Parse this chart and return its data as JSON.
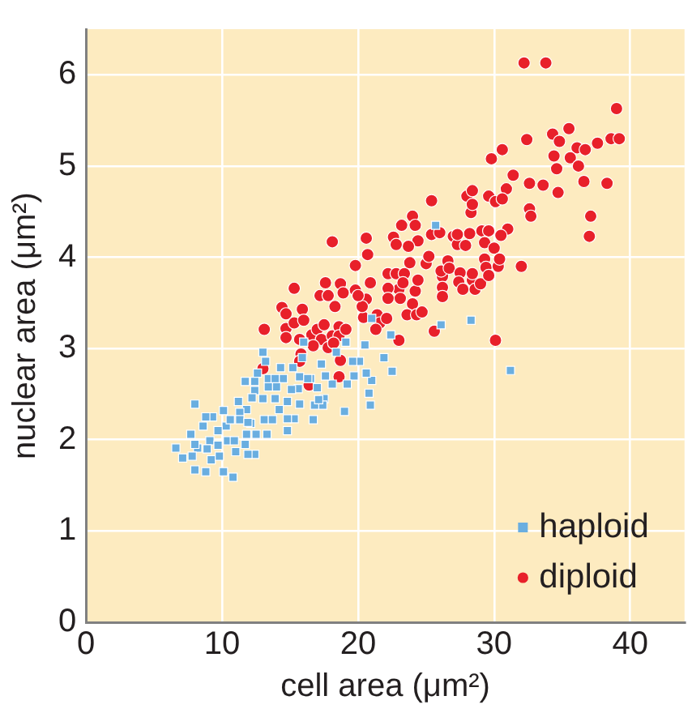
{
  "chart_data": {
    "type": "scatter",
    "xlabel": "cell area (μm²)",
    "ylabel": "nuclear area (μm²)",
    "xlim": [
      0,
      44
    ],
    "xticks": [
      0,
      10,
      20,
      30,
      40
    ],
    "ylim": [
      0,
      6.5
    ],
    "yticks": [
      0,
      1,
      2,
      3,
      4,
      5,
      6
    ],
    "grid": true,
    "legend": "bottom right",
    "series": [
      {
        "name": "haploid",
        "color": "#6aaee0",
        "marker": "square",
        "x": [
          25.7,
          26.1,
          28.3,
          31.2,
          21.0,
          22.4,
          20.5,
          21.9,
          22.5,
          21.0,
          20.8,
          20.9,
          20.6,
          20.1,
          19.6,
          19.7,
          19.2,
          19.0,
          19.1,
          18.4,
          18.1,
          17.5,
          17.4,
          16.7,
          16.8,
          17.6,
          17.0,
          16.5,
          17.3,
          16.0,
          15.7,
          15.6,
          15.7,
          15.3,
          14.8,
          14.8,
          15.1,
          14.5,
          14.3,
          14.0,
          13.9,
          13.4,
          13.4,
          13.0,
          13.2,
          12.6,
          12.4,
          11.7,
          12.4,
          13.0,
          12.2,
          11.8,
          11.2,
          11.3,
          12.1,
          13.1,
          13.3,
          12.5,
          11.8,
          11.7,
          11.0,
          12.4,
          11.9,
          10.4,
          10.3,
          10.6,
          10.1,
          9.3,
          8.8,
          8.6,
          9.7,
          9.1,
          9.7,
          8.9,
          8.2,
          7.8,
          7.1,
          6.6,
          7.7,
          8.0,
          9.2,
          8.8,
          8.0,
          10.1,
          10.8,
          8.0,
          9.8,
          10.9,
          11.3,
          11.9,
          13.7,
          14.2,
          14.8,
          15.2,
          13.9,
          15.9,
          16.3,
          17.1
        ],
        "values": [
          4.35,
          3.26,
          3.31,
          2.76,
          3.33,
          3.15,
          3.04,
          2.9,
          2.75,
          2.65,
          2.51,
          2.38,
          2.73,
          2.86,
          2.86,
          2.7,
          2.61,
          2.31,
          3.07,
          2.96,
          2.61,
          2.45,
          2.38,
          2.22,
          2.38,
          2.7,
          2.57,
          2.67,
          2.83,
          3.07,
          2.69,
          2.56,
          2.39,
          2.23,
          2.23,
          2.1,
          2.55,
          2.67,
          2.79,
          2.58,
          2.45,
          2.58,
          2.67,
          2.96,
          2.86,
          2.73,
          2.64,
          2.64,
          2.54,
          2.45,
          2.46,
          2.33,
          2.42,
          2.3,
          2.18,
          2.22,
          2.06,
          2.06,
          2.06,
          1.95,
          1.87,
          1.84,
          1.84,
          1.99,
          2.15,
          2.22,
          2.32,
          2.25,
          2.25,
          2.15,
          2.1,
          1.99,
          1.94,
          1.9,
          1.91,
          1.82,
          1.8,
          1.91,
          2.06,
          1.95,
          1.78,
          1.65,
          1.67,
          1.65,
          1.59,
          2.39,
          1.82,
          1.99,
          2.22,
          2.19,
          2.22,
          2.33,
          2.42,
          2.79,
          2.67,
          2.9,
          2.67,
          2.44
        ]
      },
      {
        "name": "diploid",
        "color": "#e8202a",
        "marker": "circle",
        "x": [
          32.2,
          33.8,
          39.0,
          38.6,
          39.2,
          32.4,
          29.8,
          30.6,
          34.3,
          34.8,
          35.5,
          34.4,
          36.1,
          36.7,
          37.6,
          35.6,
          36.2,
          34.6,
          31.4,
          32.6,
          33.6,
          36.6,
          38.3,
          34.7,
          30.9,
          29.6,
          30.1,
          30.6,
          32.6,
          32.7,
          37.1,
          37.0,
          25.4,
          28.0,
          28.4,
          28.3,
          28.4,
          31.0,
          30.5,
          29.1,
          29.6,
          29.3,
          30.0,
          24.0,
          23.2,
          24.2,
          22.6,
          24.4,
          25.4,
          26.0,
          27.0,
          27.3,
          27.9,
          28.2,
          27.3,
          22.8,
          23.7,
          20.6,
          20.7,
          18.1,
          19.8,
          20.9,
          22.2,
          22.8,
          23.4,
          23.0,
          23.1,
          22.2,
          22.2,
          23.3,
          24.2,
          24.4,
          23.8,
          25.0,
          25.2,
          26.2,
          26.1,
          26.6,
          26.7,
          26.2,
          26.2,
          27.5,
          27.4,
          27.7,
          28.4,
          28.4,
          28.6,
          29.0,
          29.3,
          29.4,
          29.6,
          30.3,
          30.4,
          32.0,
          30.1,
          25.6,
          24.0,
          23.6,
          24.3,
          24.7,
          23.0,
          21.4,
          21.6,
          21.3,
          22.1,
          20.4,
          20.6,
          20.3,
          19.8,
          20.0,
          18.7,
          17.6,
          17.2,
          17.8,
          18.9,
          18.3,
          15.3,
          14.4,
          14.7,
          14.7,
          14.7,
          15.3,
          15.9,
          16.0,
          15.7,
          15.8,
          15.7,
          13.1,
          16.6,
          17.0,
          17.5,
          17.3,
          18.1,
          18.6,
          18.6,
          19.1,
          17.8,
          16.7,
          18.2,
          18.7,
          18.6,
          16.4,
          13.0
        ],
        "values": [
          6.13,
          6.13,
          5.63,
          5.3,
          5.3,
          5.29,
          5.08,
          5.18,
          5.35,
          5.27,
          5.41,
          5.11,
          5.2,
          5.18,
          5.25,
          5.09,
          5.0,
          4.97,
          4.9,
          4.81,
          4.79,
          4.83,
          4.81,
          4.71,
          4.75,
          4.67,
          4.61,
          4.64,
          4.53,
          4.45,
          4.45,
          4.23,
          4.62,
          4.67,
          4.73,
          4.49,
          4.58,
          4.31,
          4.24,
          4.29,
          4.29,
          4.16,
          4.1,
          4.45,
          4.35,
          4.35,
          4.22,
          4.18,
          4.25,
          4.27,
          4.23,
          4.14,
          4.13,
          4.26,
          4.25,
          4.14,
          4.12,
          4.21,
          4.03,
          4.17,
          3.91,
          3.72,
          3.82,
          3.82,
          3.82,
          3.65,
          3.55,
          3.66,
          3.55,
          3.72,
          3.63,
          3.75,
          3.94,
          3.93,
          4.01,
          3.79,
          3.85,
          3.96,
          3.88,
          3.67,
          3.57,
          3.83,
          3.73,
          3.65,
          3.75,
          3.82,
          3.65,
          3.71,
          3.98,
          3.89,
          3.8,
          3.9,
          3.98,
          3.9,
          3.09,
          3.19,
          3.49,
          3.37,
          3.37,
          3.4,
          3.09,
          3.37,
          3.28,
          3.21,
          3.33,
          3.34,
          3.54,
          3.46,
          3.64,
          3.58,
          3.71,
          3.72,
          3.58,
          3.58,
          3.61,
          3.46,
          3.66,
          3.45,
          3.38,
          3.22,
          3.12,
          3.28,
          3.43,
          3.31,
          3.1,
          2.94,
          2.86,
          3.21,
          3.15,
          3.21,
          3.26,
          3.1,
          3.14,
          3.24,
          3.14,
          3.21,
          3.01,
          3.03,
          3.06,
          2.87,
          2.69,
          2.6,
          2.78
        ]
      }
    ]
  }
}
